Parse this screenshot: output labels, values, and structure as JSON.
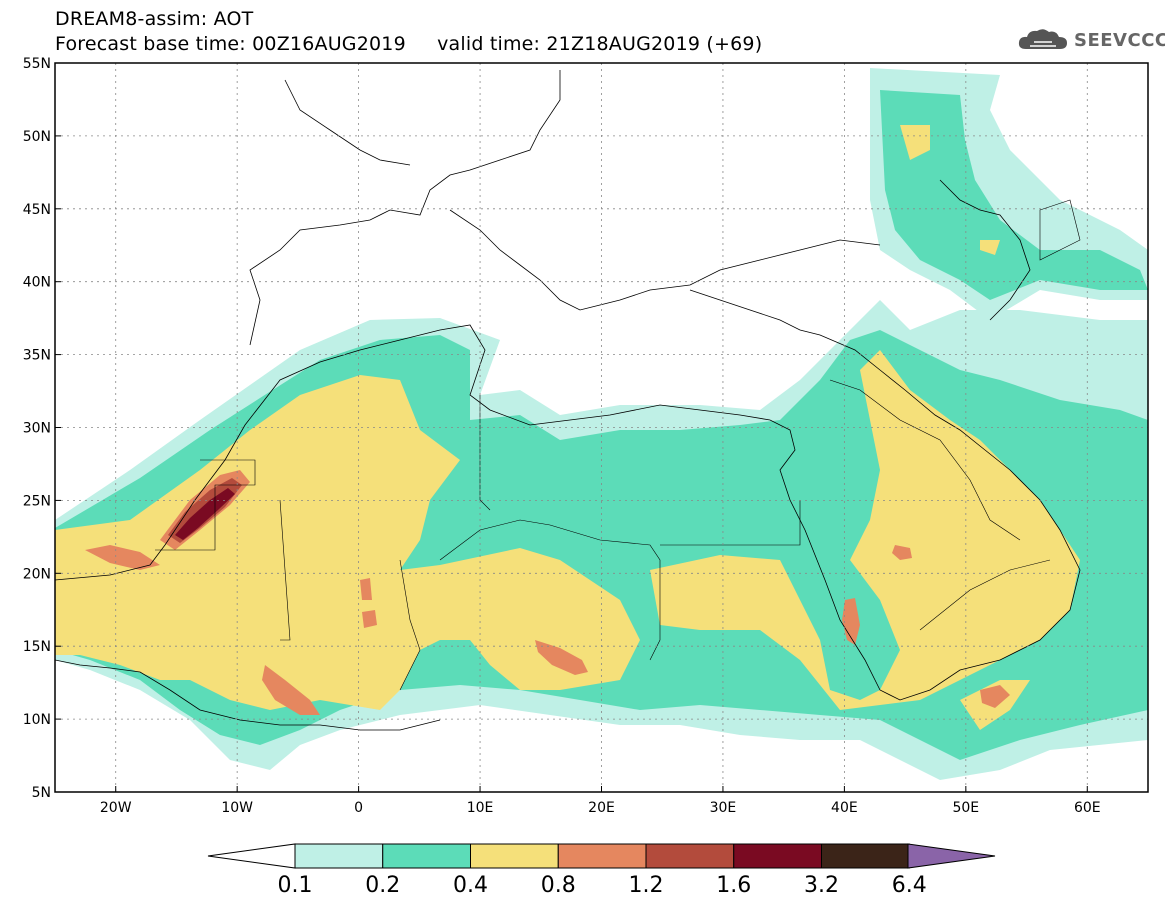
{
  "title": {
    "line1": "DREAM8-assim: AOT",
    "line2": "Forecast base time: 00Z16AUG2019     valid time: 21Z18AUG2019 (+69)"
  },
  "logo": {
    "text": "SEEVCCC",
    "icon": "cloud-logo-icon"
  },
  "map": {
    "lon_range": [
      -25,
      65
    ],
    "lat_range": [
      5,
      55
    ],
    "x_ticks": [
      {
        "lon": -20,
        "label": "20W"
      },
      {
        "lon": -10,
        "label": "10W"
      },
      {
        "lon": 0,
        "label": "0"
      },
      {
        "lon": 10,
        "label": "10E"
      },
      {
        "lon": 20,
        "label": "20E"
      },
      {
        "lon": 30,
        "label": "30E"
      },
      {
        "lon": 40,
        "label": "40E"
      },
      {
        "lon": 50,
        "label": "50E"
      },
      {
        "lon": 60,
        "label": "60E"
      }
    ],
    "y_ticks": [
      {
        "lat": 5,
        "label": "5N"
      },
      {
        "lat": 10,
        "label": "10N"
      },
      {
        "lat": 15,
        "label": "15N"
      },
      {
        "lat": 20,
        "label": "20N"
      },
      {
        "lat": 25,
        "label": "25N"
      },
      {
        "lat": 30,
        "label": "30N"
      },
      {
        "lat": 35,
        "label": "35N"
      },
      {
        "lat": 40,
        "label": "40N"
      },
      {
        "lat": 45,
        "label": "45N"
      },
      {
        "lat": 50,
        "label": "50N"
      },
      {
        "lat": 55,
        "label": "55N"
      }
    ]
  },
  "colorbar": {
    "colors": [
      "#bff0e6",
      "#5cdcb8",
      "#f5e07a",
      "#e5875f",
      "#b34b3c",
      "#7a0a22",
      "#3b2418",
      "#8a64a8"
    ],
    "labels": [
      "0.1",
      "0.2",
      "0.4",
      "0.8",
      "1.2",
      "1.6",
      "3.2",
      "6.4"
    ]
  }
}
